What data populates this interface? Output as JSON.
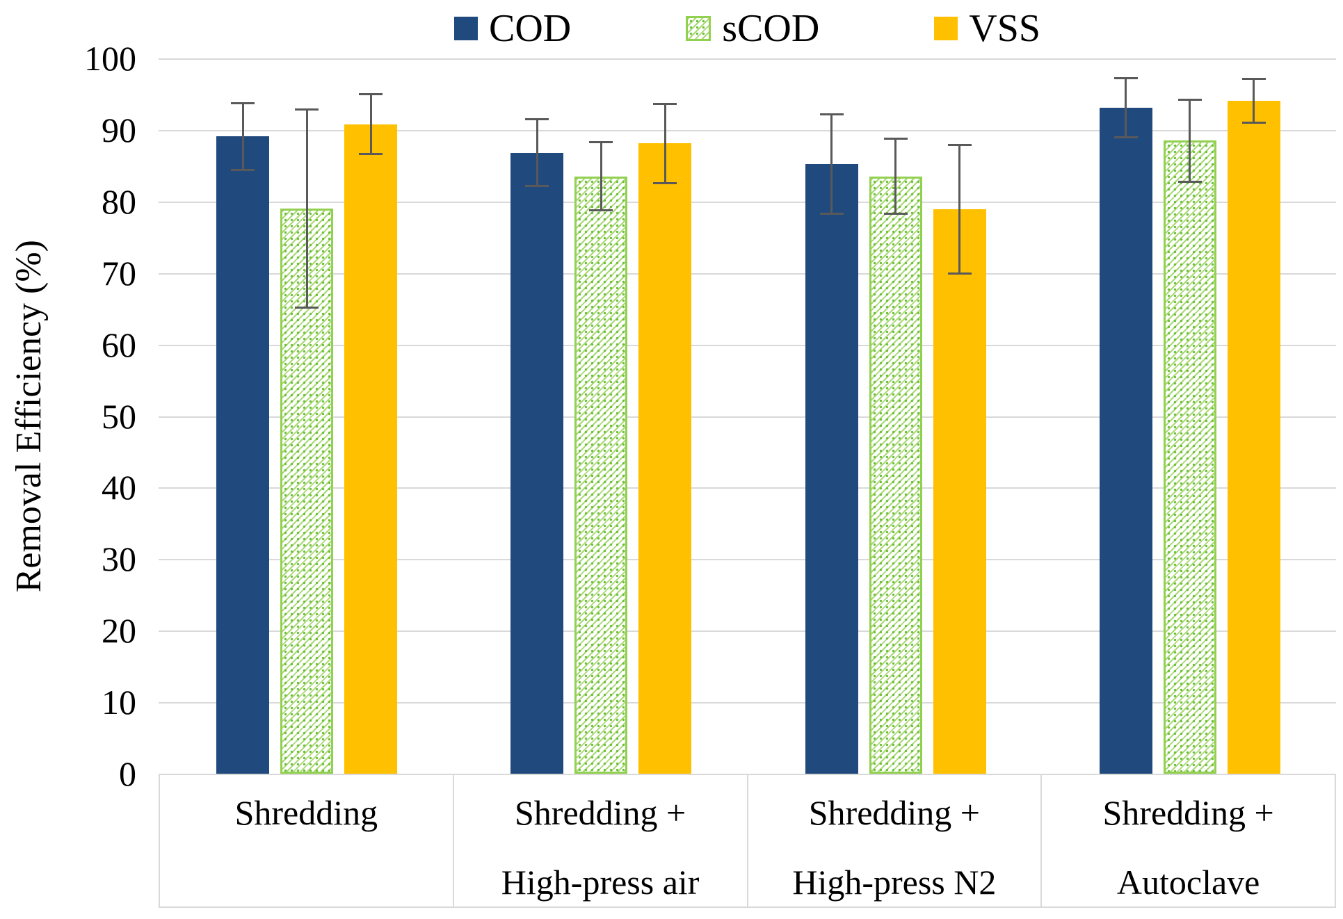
{
  "figure": {
    "y_axis_title": "Removal Efficiency (%)"
  },
  "colors": {
    "cod_blue": "#204A7D",
    "scod_green": "#92D050",
    "vss_yellow": "#FFC000",
    "error_bar_gray": "#595959",
    "gridline_gray": "#D9D9D9",
    "text_black": "#000000"
  },
  "chart_data": {
    "type": "bar",
    "title": "",
    "xlabel": "",
    "ylabel": "Removal Efficiency (%)",
    "ylim": [
      0,
      100
    ],
    "yticks": [
      0,
      10,
      20,
      30,
      40,
      50,
      60,
      70,
      80,
      90,
      100
    ],
    "grid": true,
    "legend_position": "top",
    "categories": [
      "Shredding",
      "Shredding + High-press air",
      "Shredding + High-press N2",
      "Shredding + Autoclave"
    ],
    "category_label_lines": [
      [
        "Shredding",
        ""
      ],
      [
        "Shredding +",
        "High-press air"
      ],
      [
        "Shredding +",
        "High-press N2"
      ],
      [
        "Shredding +",
        "Autoclave"
      ]
    ],
    "series": [
      {
        "name": "COD",
        "style": "solid",
        "color": "#204A7D",
        "values": [
          89.1,
          86.8,
          85.2,
          93.1
        ],
        "errors": [
          4.8,
          4.8,
          7.1,
          4.3
        ]
      },
      {
        "name": "sCOD",
        "style": "hatched",
        "color": "#92D050",
        "values": [
          79.0,
          83.5,
          83.5,
          88.5
        ],
        "errors": [
          14.0,
          4.9,
          5.4,
          5.9
        ]
      },
      {
        "name": "VSS",
        "style": "solid",
        "color": "#FFC000",
        "values": [
          90.8,
          88.1,
          78.9,
          94.1
        ],
        "errors": [
          4.3,
          5.7,
          9.1,
          3.2
        ]
      }
    ]
  }
}
